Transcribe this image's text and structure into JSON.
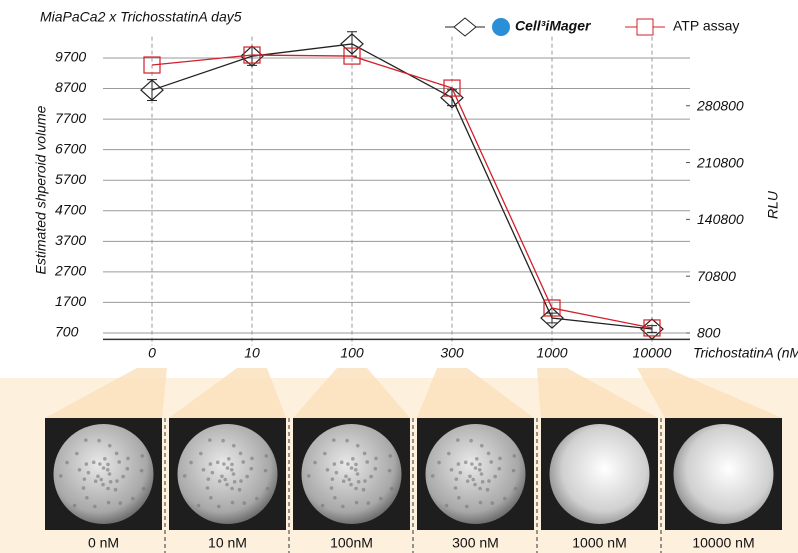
{
  "chart_data": {
    "type": "line",
    "title": "MiaPaCa2 x TrichosstatinA day5",
    "x_label": "TrichostatinA (nM)",
    "y_label": "Estimated  shperoid volume",
    "y2_label": "RLU",
    "categories": [
      "0",
      "10",
      "100",
      "300",
      "1000",
      "10000"
    ],
    "series": [
      {
        "name": "Cell³iMager",
        "color": "#222222",
        "marker": "diamond",
        "values": [
          8650,
          9760,
          10160,
          8400,
          1190,
          830
        ],
        "errors": [
          340,
          300,
          400,
          260,
          160,
          110
        ]
      },
      {
        "name": "ATP assay",
        "color": "#d0202a",
        "marker": "square",
        "axis": "y2",
        "values": [
          331000,
          343300,
          342000,
          302600,
          31600,
          7000
        ]
      }
    ],
    "ylim": [
      490,
      10400
    ],
    "yticks": [
      700,
      1700,
      2700,
      3700,
      4700,
      5700,
      6700,
      7700,
      8700,
      9700
    ],
    "y2lim": [
      -7100,
      366000
    ],
    "y2ticks": [
      800,
      70800,
      140800,
      210800,
      280800
    ],
    "grid": true,
    "legend": "top-right"
  },
  "panels": {
    "captions": [
      "0 nM",
      "10 nM",
      "100nM",
      "300 nM",
      "1000 nM",
      "10000 nM"
    ]
  }
}
